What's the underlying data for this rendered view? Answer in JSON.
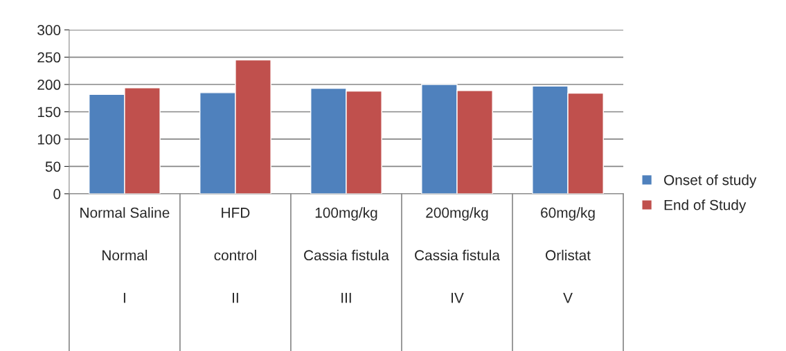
{
  "chart_data": {
    "type": "bar",
    "categories": [
      "Normal Saline\n\nNormal\n\nI",
      "HFD\n\ncontrol\n\nII",
      "100mg/kg\n\nCassia fistula\n\nIII",
      "200mg/kg\n\nCassia fistula\n\nIV",
      "60mg/kg\n\nOrlistat\n\nV"
    ],
    "series": [
      {
        "name": "Onset of study",
        "color": "#4f81bd",
        "values": [
          182,
          185,
          193,
          200,
          197
        ]
      },
      {
        "name": "End of Study",
        "color": "#c0504d",
        "values": [
          194,
          245,
          188,
          189,
          184
        ]
      }
    ],
    "ylim": [
      0,
      300
    ],
    "yticks": [
      0,
      50,
      100,
      150,
      200,
      250,
      300
    ],
    "grid": "y",
    "legend": "right"
  }
}
